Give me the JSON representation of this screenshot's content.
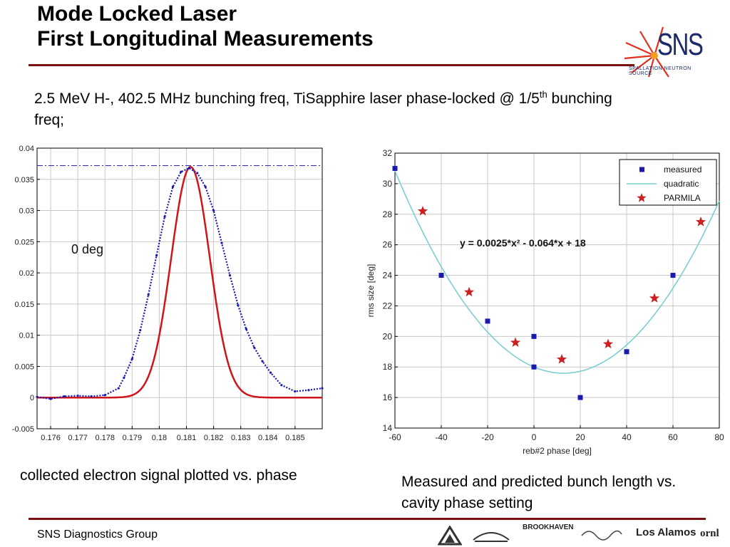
{
  "slide": {
    "title_line1": "Mode Locked Laser",
    "title_line2": "First Longitudinal Measurements",
    "subtitle_part1": "2.5 MeV H-, 402.5 MHz bunching freq, TiSapphire laser phase-locked @ 1/5",
    "subtitle_sup": "th",
    "subtitle_part2": " bunching freq;",
    "caption_left": "collected electron signal plotted vs. phase",
    "caption_right": "Measured and predicted bunch length vs. cavity phase setting",
    "footer": "SNS Diagnostics Group"
  },
  "logo": {
    "name": "SNS",
    "subtext": "SPALLATION NEUTRON SOURCE",
    "color": "#1b2a6b",
    "accent": "#e0301e"
  },
  "partners": [
    "BROOKHAVEN",
    "Los Alamos",
    "ornl"
  ],
  "colors": {
    "rule": "#7a1010",
    "fit_red": "#d0141a",
    "measured_blue": "#1a1ab0",
    "quadratic_cyan": "#7ccfd0",
    "parmila_red": "#cc1f1f"
  },
  "chart_data": [
    {
      "type": "line",
      "xlim": [
        0.1755,
        0.186
      ],
      "ylim": [
        -0.005,
        0.04
      ],
      "x_ticks": [
        "0.176",
        "0.177",
        "0.178",
        "0.179",
        "0.18",
        "0.181",
        "0.182",
        "0.183",
        "0.184",
        "0.185"
      ],
      "y_ticks": [
        "-0.005",
        "0",
        "0.005",
        "0.01",
        "0.015",
        "0.02",
        "0.025",
        "0.03",
        "0.035",
        "0.04"
      ],
      "x_tick_values": [
        0.176,
        0.177,
        0.178,
        0.179,
        0.18,
        0.181,
        0.182,
        0.183,
        0.184,
        0.185
      ],
      "y_tick_values": [
        -0.005,
        0,
        0.005,
        0.01,
        0.015,
        0.02,
        0.025,
        0.03,
        0.035,
        0.04
      ],
      "grid": true,
      "annotation": "0 deg",
      "reference_line_y": 0.0372,
      "series": [
        {
          "style": "dotted-markers",
          "color": "#1a1ab0",
          "x": [
            0.1755,
            0.176,
            0.1765,
            0.177,
            0.1775,
            0.178,
            0.1785,
            0.1787,
            0.179,
            0.1793,
            0.1796,
            0.1799,
            0.1802,
            0.1805,
            0.1808,
            0.1811,
            0.1814,
            0.1817,
            0.182,
            0.1823,
            0.1826,
            0.1829,
            0.1832,
            0.1835,
            0.1838,
            0.1841,
            0.1845,
            0.185,
            0.1855,
            0.186
          ],
          "y": [
            0.0001,
            -0.0002,
            0.0002,
            0.0003,
            0.0002,
            0.0004,
            0.0015,
            0.0032,
            0.0062,
            0.0108,
            0.0165,
            0.0228,
            0.029,
            0.0338,
            0.0362,
            0.0368,
            0.036,
            0.0338,
            0.03,
            0.0248,
            0.0196,
            0.0148,
            0.011,
            0.008,
            0.0058,
            0.004,
            0.002,
            0.001,
            0.0012,
            0.0015
          ]
        },
        {
          "style": "line",
          "color": "#d0141a",
          "gaussian": {
            "amplitude": 0.037,
            "center": 0.18115,
            "sigma": 0.00071
          }
        }
      ]
    },
    {
      "type": "scatter",
      "xlim": [
        -60,
        80
      ],
      "ylim": [
        14,
        32
      ],
      "x_ticks": [
        "-60",
        "-40",
        "-20",
        "0",
        "20",
        "40",
        "60",
        "80"
      ],
      "y_ticks": [
        "14",
        "16",
        "18",
        "20",
        "22",
        "24",
        "26",
        "28",
        "30",
        "32"
      ],
      "x_tick_values": [
        -60,
        -40,
        -20,
        0,
        20,
        40,
        60,
        80
      ],
      "y_tick_values": [
        14,
        16,
        18,
        20,
        22,
        24,
        26,
        28,
        30,
        32
      ],
      "xlabel": "reb#2 phase [deg]",
      "ylabel": "rms size [deg]",
      "grid": true,
      "legend_position": "top-right",
      "annotation": "y = 0.0025*x² - 0.064*x + 18",
      "series": [
        {
          "name": "measured",
          "marker": "square",
          "color": "#1a1ab0",
          "x": [
            -60,
            -40,
            -20,
            0,
            0,
            20,
            40,
            60
          ],
          "y": [
            31,
            24,
            21,
            20,
            18,
            16,
            19,
            24
          ]
        },
        {
          "name": "quadratic",
          "marker": "line",
          "color": "#7ccfd0",
          "coefficients": {
            "a": 0.0025,
            "b": -0.064,
            "c": 18
          }
        },
        {
          "name": "PARMILA",
          "marker": "star",
          "color": "#cc1f1f",
          "x": [
            -48,
            -28,
            -8,
            12,
            32,
            52,
            72
          ],
          "y": [
            28.2,
            22.9,
            19.6,
            18.5,
            19.5,
            22.5,
            27.5
          ]
        }
      ]
    }
  ]
}
